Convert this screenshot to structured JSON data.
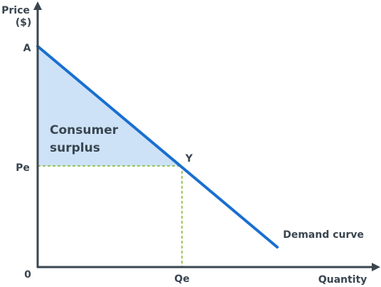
{
  "y_axis_label": [
    "Price",
    "($)"
  ],
  "x_axis_label": "Quantity",
  "origin_label": "0",
  "intercept_label": "A",
  "price_label": "Pe",
  "quantity_label": "Qe",
  "equilibrium_label": "Y",
  "surplus_label": [
    "Consumer",
    "surplus"
  ],
  "curve_label": "Demand curve",
  "colors": {
    "axis": "#3a4650",
    "demand_line": "#1a6fd0",
    "surplus_fill": "#cde2f7",
    "guide_dash": "#7ab82e",
    "text": "#3a4650"
  }
}
